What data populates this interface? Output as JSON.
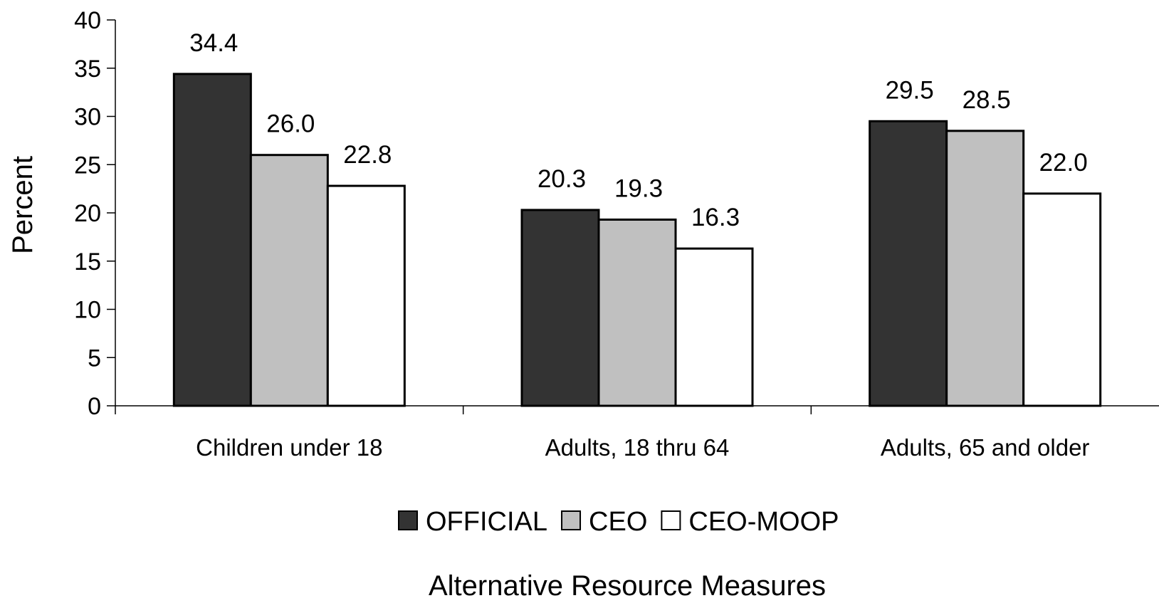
{
  "chart_data": {
    "type": "bar",
    "categories": [
      "Children under 18",
      "Adults, 18 thru 64",
      "Adults, 65 and older"
    ],
    "series": [
      {
        "name": "OFFICIAL",
        "values": [
          34.4,
          20.3,
          29.5
        ],
        "labels": [
          "34.4",
          "20.3",
          "29.5"
        ],
        "color": "#333333"
      },
      {
        "name": "CEO",
        "values": [
          26.0,
          19.3,
          28.5
        ],
        "labels": [
          "26.0",
          "19.3",
          "28.5"
        ],
        "color": "#c0c0c0"
      },
      {
        "name": "CEO-MOOP",
        "values": [
          22.8,
          16.3,
          22.0
        ],
        "labels": [
          "22.8",
          "16.3",
          "22.0"
        ],
        "color": "#ffffff"
      }
    ],
    "ylabel": "Percent",
    "xlabel": "Alternative Resource Measures",
    "ylim": [
      0,
      40
    ],
    "yticks": [
      0,
      5,
      10,
      15,
      20,
      25,
      30,
      35,
      40
    ],
    "grid": false,
    "legend_position": "bottom"
  }
}
